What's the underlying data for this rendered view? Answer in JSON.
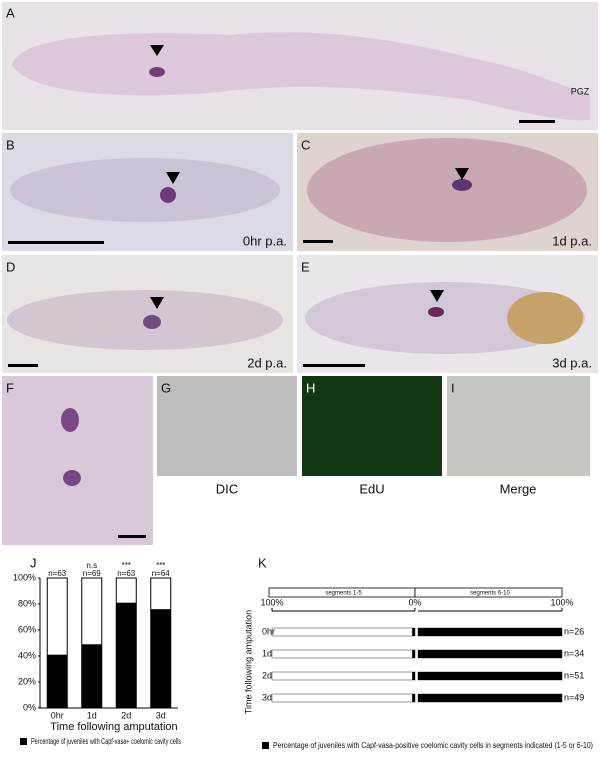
{
  "panels": [
    {
      "label": "A",
      "annotation": "PGZ"
    },
    {
      "label": "B",
      "caption": "0hr p.a."
    },
    {
      "label": "C",
      "caption": "1d p.a."
    },
    {
      "label": "D",
      "caption": "2d p.a."
    },
    {
      "label": "E",
      "caption": "3d p.a."
    },
    {
      "label": "F"
    },
    {
      "label": "G",
      "caption": "DIC"
    },
    {
      "label": "H",
      "caption": "EdU"
    },
    {
      "label": "I",
      "caption": "Merge"
    }
  ],
  "chart_data": [
    {
      "type": "bar",
      "label": "J",
      "xlabel": "Time following amputation",
      "categories": [
        "0hr",
        "1d",
        "2d",
        "3d"
      ],
      "annotations": [
        "n=63",
        "n=69",
        "n=63",
        "n=64"
      ],
      "significance": [
        null,
        "n.s",
        "***",
        "***"
      ],
      "series": [
        {
          "name": "Percentage of juveniles with Capf-vasa+ coelomic cavity cells",
          "color": "#000000",
          "values": [
            41,
            49,
            81,
            76
          ]
        }
      ],
      "ylim": [
        0,
        100
      ],
      "yticks": [
        {
          "value": 0,
          "label": "0%"
        },
        {
          "value": 20,
          "label": "20%"
        },
        {
          "value": 40,
          "label": "40%"
        },
        {
          "value": 60,
          "label": "60%"
        },
        {
          "value": 80,
          "label": "80%"
        },
        {
          "value": 100,
          "label": "100%"
        }
      ]
    },
    {
      "type": "hbar",
      "label": "K",
      "ylabel": "Time following amputation",
      "categories": [
        "0hr",
        "1d",
        "2d",
        "3d"
      ],
      "annotations": [
        "n=26",
        "n=34",
        "n=51",
        "n=49"
      ],
      "legend": "Percentage of juveniles with Capf-vasa-positive coelomic cavity cells in segments indicated (1-5 or 6-10)",
      "series": [
        {
          "name": "segments 1-5",
          "color": "#000000",
          "values": [
            2,
            2,
            2,
            2
          ],
          "xlim": [
            100,
            0
          ],
          "xticks": [
            {
              "value": 100,
              "label": "100%"
            },
            {
              "value": 0,
              "label": "0%"
            }
          ]
        },
        {
          "name": "segments 6-10",
          "color": "#000000",
          "values": [
            100,
            100,
            100,
            100
          ],
          "xlim": [
            0,
            100
          ],
          "xticks": [
            {
              "value": 100,
              "label": "100%"
            }
          ]
        }
      ]
    }
  ]
}
